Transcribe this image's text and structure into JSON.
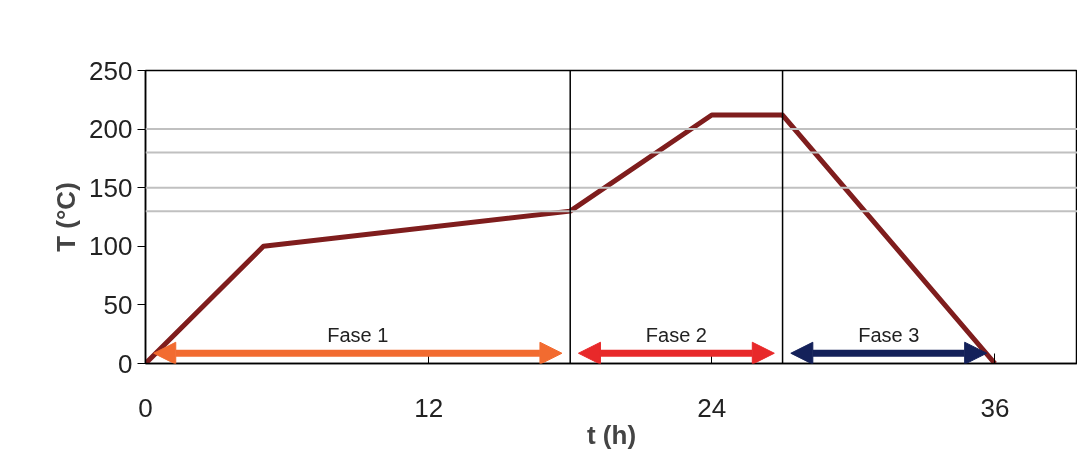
{
  "chart_data": {
    "type": "line",
    "xlabel": "t (h)",
    "ylabel": "T (°C)",
    "x": [
      0,
      5,
      18,
      24,
      27,
      36
    ],
    "series": [
      {
        "color": "#7f1d1d",
        "values": [
          0,
          100,
          130,
          212,
          212,
          0
        ]
      }
    ],
    "xlim": [
      0,
      39.5
    ],
    "ylim": [
      0,
      250
    ],
    "xticks": [
      0,
      12,
      24,
      36
    ],
    "yticks": [
      0,
      50,
      100,
      150,
      200,
      250
    ],
    "grid": false,
    "marker": "none",
    "line_style": "solid",
    "ref_lines": [
      {
        "axis": "y",
        "value": 130,
        "label": null,
        "color": "#c0c0c0"
      },
      {
        "axis": "y",
        "value": 150,
        "label": null,
        "color": "#c0c0c0"
      },
      {
        "axis": "y",
        "value": 180,
        "label": null,
        "color": "#c0c0c0"
      },
      {
        "axis": "y",
        "value": 200,
        "label": null,
        "color": "#c0c0c0"
      },
      {
        "axis": "x",
        "value": 18,
        "label": null,
        "color": "#000000"
      },
      {
        "axis": "x",
        "value": 27,
        "label": null,
        "color": "#000000"
      }
    ],
    "annotations": [
      "Fase 1",
      "Fase 2",
      "Fase 3"
    ]
  }
}
